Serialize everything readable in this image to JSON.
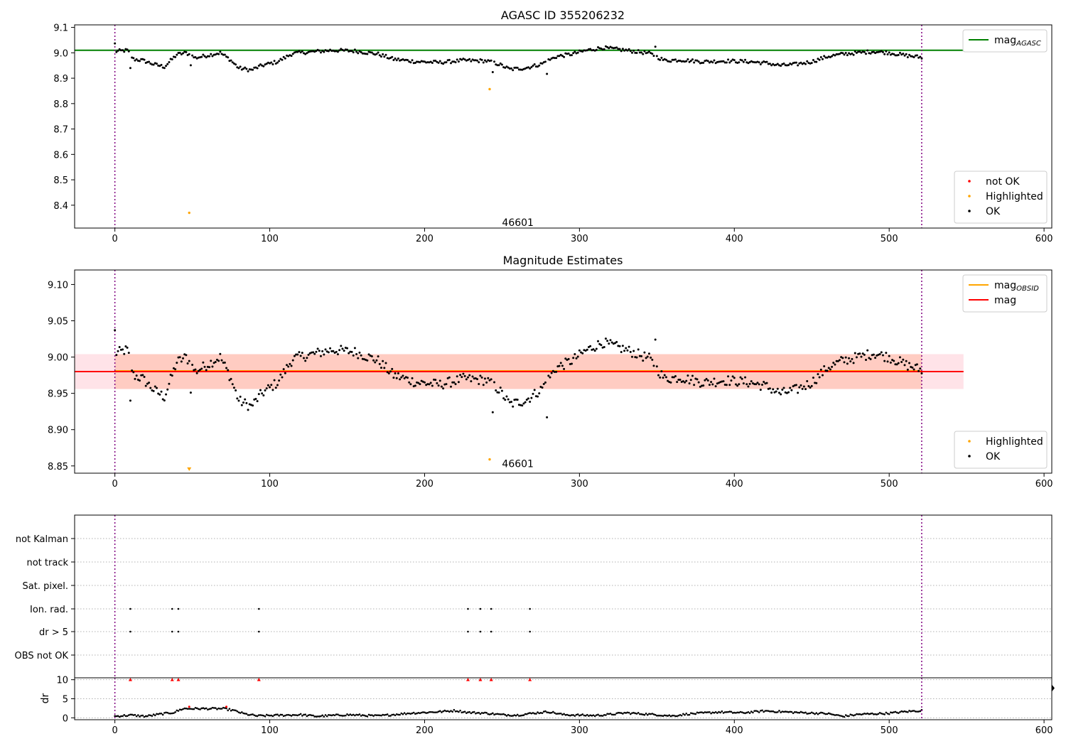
{
  "colors": {
    "ok": "#000000",
    "not_ok": "#ff0000",
    "highlighted": "#ffa500",
    "mag_agasc": "#008000",
    "mag_obsid": "#ffa500",
    "mag": "#ff0000",
    "band_outer": "#ffc0cb",
    "band_inner": "#ffa07a",
    "obs_boundary": "#800080",
    "grid": "#b0b0b0"
  },
  "chart_data": [
    {
      "id": "agasc_panel",
      "type": "scatter",
      "title": "AGASC ID 355206232",
      "xlim": [
        -26,
        605
      ],
      "ylim": [
        8.31,
        9.11
      ],
      "xticks": [
        0,
        100,
        200,
        300,
        400,
        500,
        600
      ],
      "yticks": [
        8.4,
        8.5,
        8.6,
        8.7,
        8.8,
        8.9,
        9.0,
        9.1
      ],
      "y_decimals": 1,
      "hlines": [
        {
          "name": "mag_AGASC",
          "y": 9.01,
          "x0": -26,
          "x1": 548,
          "color": "#008000"
        }
      ],
      "vlines": [
        0,
        521
      ],
      "series": [
        {
          "name": "not OK",
          "color": "#ff0000",
          "points": []
        },
        {
          "name": "Highlighted",
          "color": "#ffa500",
          "points": [
            [
              48,
              8.37
            ],
            [
              242,
              8.857
            ]
          ]
        },
        {
          "name": "OK",
          "color": "#000000",
          "points": []
        }
      ],
      "annotations": [
        {
          "text": "46601",
          "x": 250,
          "y": 8.33
        }
      ],
      "legends": [
        {
          "position": "top-right",
          "entries": [
            {
              "label": "mag",
              "sub": "AGASC",
              "kind": "line",
              "color": "#008000"
            }
          ]
        },
        {
          "position": "bottom-right",
          "entries": [
            {
              "label": "not OK",
              "kind": "marker",
              "color": "#ff0000"
            },
            {
              "label": "Highlighted",
              "kind": "marker",
              "color": "#ffa500"
            },
            {
              "label": "OK",
              "kind": "marker",
              "color": "#000000"
            }
          ]
        }
      ]
    },
    {
      "id": "estimates_panel",
      "type": "scatter",
      "title": "Magnitude Estimates",
      "xlim": [
        -26,
        605
      ],
      "ylim": [
        8.84,
        9.12
      ],
      "xticks": [
        0,
        100,
        200,
        300,
        400,
        500,
        600
      ],
      "yticks": [
        8.85,
        8.9,
        8.95,
        9.0,
        9.05,
        9.1
      ],
      "y_decimals": 2,
      "bands": [
        {
          "y0": 8.956,
          "y1": 9.004,
          "x0": -26,
          "x1": 548,
          "color": "#ffc0cb",
          "opacity": 0.45
        },
        {
          "y0": 8.956,
          "y1": 9.004,
          "x0": 0,
          "x1": 521,
          "color": "#ffa07a",
          "opacity": 0.35
        }
      ],
      "hlines": [
        {
          "name": "mag_OBSID",
          "y": 8.981,
          "x0": 0,
          "x1": 521,
          "color": "#ffa500"
        },
        {
          "name": "mag",
          "y": 8.98,
          "x0": -26,
          "x1": 548,
          "color": "#ff0000"
        }
      ],
      "vlines": [
        0,
        521
      ],
      "series": [
        {
          "name": "Highlighted",
          "color": "#ffa500",
          "points": [
            [
              48,
              8.846
            ],
            [
              242,
              8.859
            ]
          ]
        },
        {
          "name": "OK",
          "color": "#000000",
          "points": []
        }
      ],
      "annotations": [
        {
          "text": "46601",
          "x": 250,
          "y": 8.852
        }
      ],
      "legends": [
        {
          "position": "top-right",
          "entries": [
            {
              "label": "mag",
              "sub": "OBSID",
              "kind": "line",
              "color": "#ffa500"
            },
            {
              "label": "mag",
              "kind": "line",
              "color": "#ff0000"
            }
          ]
        },
        {
          "position": "bottom-right",
          "entries": [
            {
              "label": "Highlighted",
              "kind": "marker",
              "color": "#ffa500"
            },
            {
              "label": "OK",
              "kind": "marker",
              "color": "#000000"
            }
          ]
        }
      ]
    },
    {
      "id": "flags_panel",
      "type": "scatter",
      "xlim": [
        -26,
        605
      ],
      "rows": [
        "not Kalman",
        "not track",
        "Sat. pixel.",
        "Ion. rad.",
        "dr > 5",
        "OBS not OK"
      ],
      "flag_points": {
        "Ion. rad.": [
          10,
          37,
          41,
          93,
          228,
          236,
          243,
          268
        ],
        "dr > 5": [
          10,
          37,
          41,
          93,
          228,
          236,
          243,
          268
        ]
      },
      "vlines": [
        0,
        521
      ]
    },
    {
      "id": "dr_panel",
      "type": "scatter",
      "ylabel": "dr",
      "xlim": [
        -26,
        605
      ],
      "ylim": [
        -0.5,
        10.5
      ],
      "xticks": [
        0,
        100,
        200,
        300,
        400,
        500,
        600
      ],
      "yticks": [
        0,
        5,
        10
      ],
      "y_decimals": 0,
      "capped_y": 10,
      "capped_x": [
        10,
        37,
        41,
        93,
        228,
        236,
        243,
        268
      ],
      "not_ok_points": [
        [
          48,
          2.9
        ],
        [
          72,
          2.9
        ]
      ],
      "vlines": [
        0,
        521
      ]
    }
  ],
  "time_series": {
    "mag_nodes": [
      [
        0,
        9.005
      ],
      [
        8,
        9.01
      ],
      [
        12,
        8.975
      ],
      [
        18,
        8.97
      ],
      [
        25,
        8.955
      ],
      [
        32,
        8.945
      ],
      [
        40,
        8.993
      ],
      [
        46,
        9.0
      ],
      [
        52,
        8.98
      ],
      [
        60,
        8.99
      ],
      [
        68,
        9.0
      ],
      [
        74,
        8.975
      ],
      [
        80,
        8.94
      ],
      [
        88,
        8.932
      ],
      [
        95,
        8.95
      ],
      [
        105,
        8.965
      ],
      [
        115,
        8.998
      ],
      [
        130,
        9.005
      ],
      [
        140,
        9.01
      ],
      [
        155,
        9.007
      ],
      [
        170,
        8.995
      ],
      [
        180,
        8.975
      ],
      [
        195,
        8.965
      ],
      [
        210,
        8.962
      ],
      [
        225,
        8.97
      ],
      [
        240,
        8.968
      ],
      [
        248,
        8.955
      ],
      [
        255,
        8.935
      ],
      [
        265,
        8.94
      ],
      [
        275,
        8.955
      ],
      [
        285,
        8.985
      ],
      [
        295,
        8.995
      ],
      [
        305,
        9.01
      ],
      [
        315,
        9.02
      ],
      [
        330,
        9.01
      ],
      [
        345,
        8.998
      ],
      [
        355,
        8.97
      ],
      [
        365,
        8.972
      ],
      [
        380,
        8.965
      ],
      [
        395,
        8.968
      ],
      [
        410,
        8.965
      ],
      [
        420,
        8.96
      ],
      [
        430,
        8.95
      ],
      [
        440,
        8.955
      ],
      [
        450,
        8.965
      ],
      [
        460,
        8.985
      ],
      [
        470,
        8.995
      ],
      [
        490,
        9.005
      ],
      [
        500,
        9.0
      ],
      [
        510,
        8.99
      ],
      [
        521,
        8.982
      ]
    ],
    "dr_nodes": [
      [
        0,
        0.4
      ],
      [
        10,
        0.7
      ],
      [
        20,
        0.4
      ],
      [
        30,
        1.0
      ],
      [
        38,
        1.4
      ],
      [
        44,
        2.4
      ],
      [
        70,
        2.4
      ],
      [
        76,
        2.0
      ],
      [
        84,
        1.0
      ],
      [
        92,
        0.5
      ],
      [
        100,
        0.6
      ],
      [
        120,
        0.8
      ],
      [
        130,
        0.4
      ],
      [
        150,
        0.8
      ],
      [
        170,
        0.5
      ],
      [
        190,
        1.2
      ],
      [
        210,
        1.6
      ],
      [
        220,
        1.9
      ],
      [
        228,
        1.4
      ],
      [
        240,
        1.2
      ],
      [
        250,
        0.8
      ],
      [
        260,
        0.7
      ],
      [
        270,
        1.2
      ],
      [
        280,
        1.6
      ],
      [
        290,
        0.8
      ],
      [
        310,
        0.6
      ],
      [
        320,
        0.9
      ],
      [
        330,
        1.3
      ],
      [
        350,
        0.8
      ],
      [
        360,
        0.5
      ],
      [
        370,
        1.0
      ],
      [
        390,
        1.5
      ],
      [
        405,
        1.3
      ],
      [
        420,
        1.8
      ],
      [
        440,
        1.4
      ],
      [
        460,
        1.1
      ],
      [
        470,
        0.4
      ],
      [
        480,
        0.9
      ],
      [
        500,
        1.2
      ],
      [
        510,
        1.6
      ],
      [
        521,
        1.9
      ]
    ],
    "x_step": 1,
    "x_start": 0,
    "x_end": 521
  }
}
